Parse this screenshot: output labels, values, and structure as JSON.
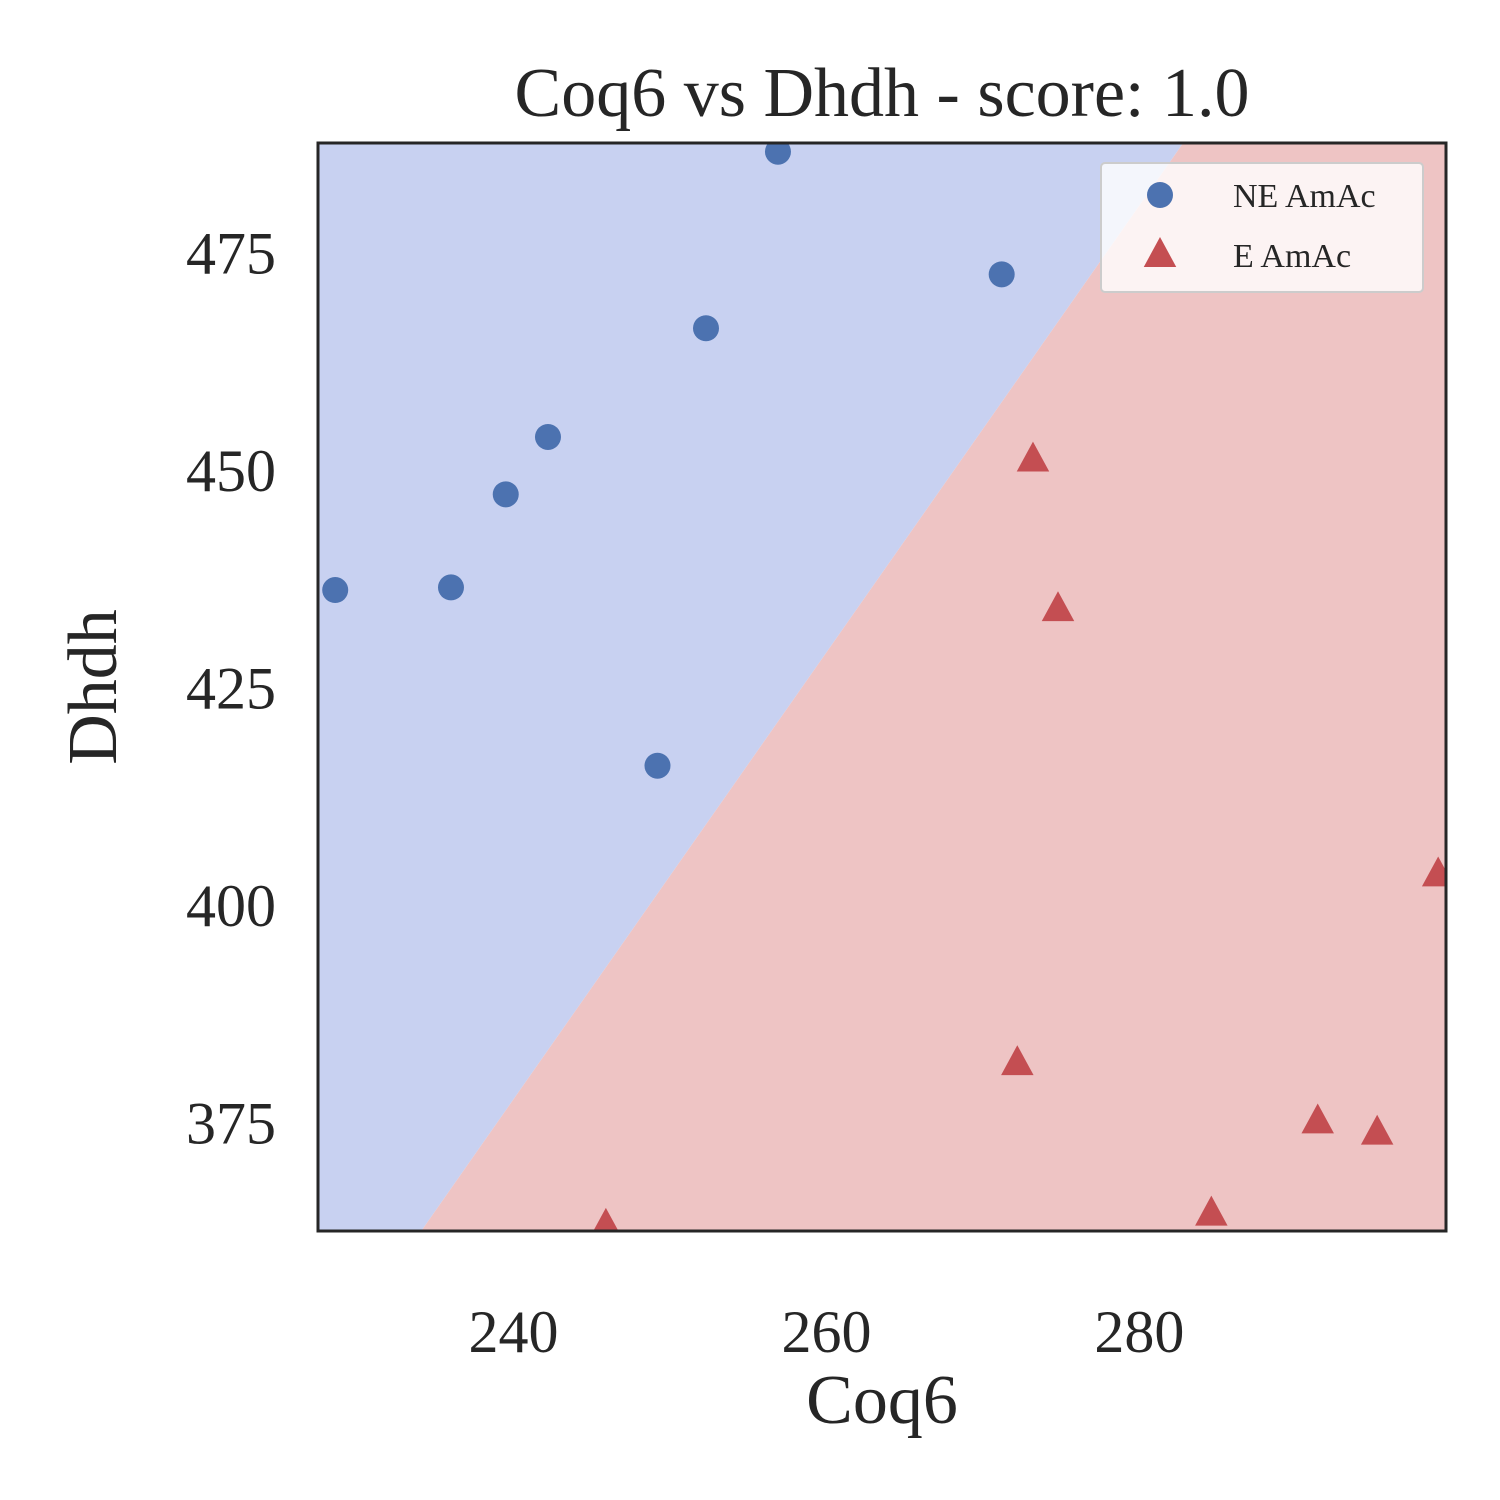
{
  "chart_data": {
    "type": "scatter",
    "title": "Coq6 vs Dhdh - score: 1.0",
    "xlabel": "Coq6",
    "ylabel": "Dhdh",
    "xlim": [
      227.5,
      299.6
    ],
    "ylim": [
      362.5,
      487.6
    ],
    "xticks": [
      240,
      260,
      280
    ],
    "yticks": [
      375,
      400,
      425,
      450,
      475
    ],
    "grid": false,
    "legend_position": "top-right",
    "decision_boundary": {
      "points": [
        [
          234.1,
          362.5
        ],
        [
          282.8,
          487.6
        ]
      ],
      "left_region_class": "NE AmAc",
      "right_region_class": "E AmAc"
    },
    "series": [
      {
        "name": "NE AmAc",
        "marker": "circle",
        "color": "#4c72b0",
        "points": [
          [
            228.6,
            436.2
          ],
          [
            236.0,
            436.5
          ],
          [
            239.5,
            447.2
          ],
          [
            242.2,
            453.8
          ],
          [
            249.2,
            416.0
          ],
          [
            252.3,
            466.3
          ],
          [
            256.9,
            486.6
          ],
          [
            271.2,
            472.5
          ]
        ]
      },
      {
        "name": "E AmAc",
        "marker": "triangle",
        "color": "#c44e52",
        "points": [
          [
            245.9,
            363.1
          ],
          [
            272.2,
            381.8
          ],
          [
            273.2,
            451.2
          ],
          [
            274.8,
            434.0
          ],
          [
            284.6,
            364.5
          ],
          [
            291.4,
            375.1
          ],
          [
            295.2,
            373.8
          ],
          [
            299.1,
            403.5
          ]
        ]
      }
    ],
    "colors": {
      "left_region": "#c8d1f1",
      "right_region": "#eec4c4",
      "axes_frame": "#262626",
      "legend_bg": "#ffffff",
      "legend_border": "#cccccc"
    }
  }
}
